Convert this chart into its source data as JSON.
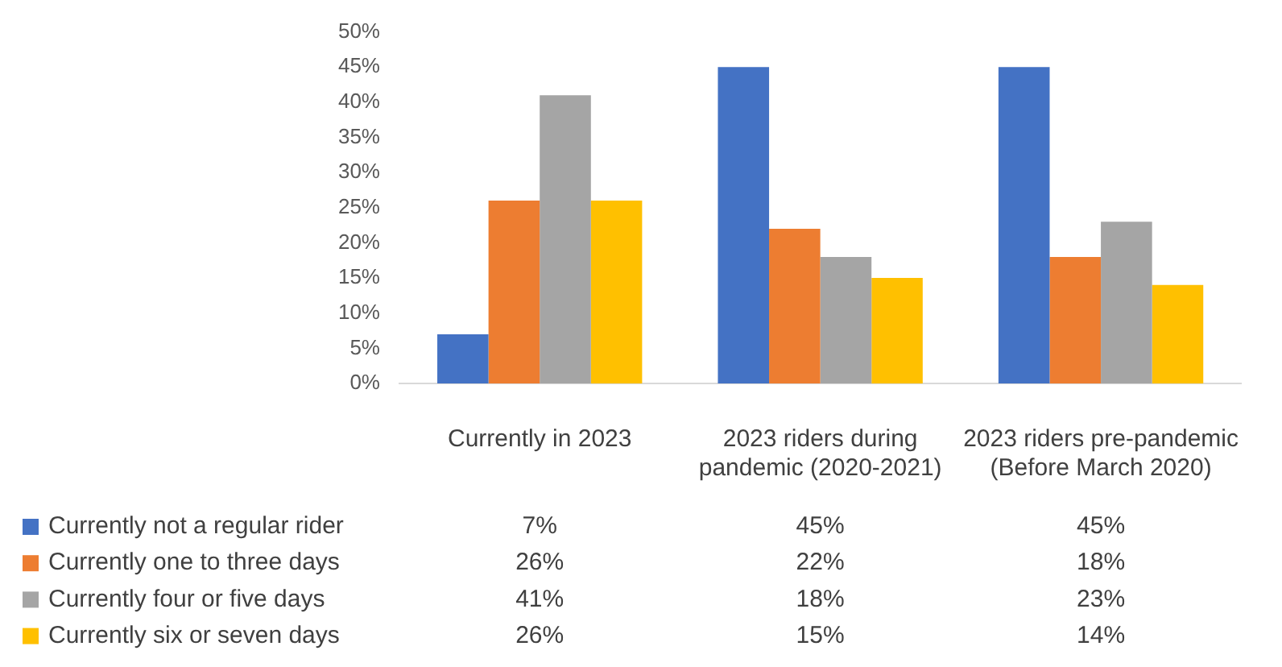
{
  "chart_data": {
    "type": "bar",
    "categories": [
      "Currently in 2023",
      "2023 riders during pandemic (2020-2021)",
      "2023 riders pre-pandemic (Before March 2020)"
    ],
    "series": [
      {
        "name": "Currently not a regular rider",
        "color": "#4472c4",
        "values": [
          7,
          45,
          45
        ],
        "value_labels": [
          "7%",
          "45%",
          "45%"
        ]
      },
      {
        "name": "Currently one to three days",
        "color": "#ed7d31",
        "values": [
          26,
          22,
          18
        ],
        "value_labels": [
          "26%",
          "22%",
          "18%"
        ]
      },
      {
        "name": "Currently four or five days",
        "color": "#a5a5a5",
        "values": [
          41,
          18,
          23
        ],
        "value_labels": [
          "41%",
          "18%",
          "23%"
        ]
      },
      {
        "name": "Currently six or seven days",
        "color": "#ffc000",
        "values": [
          26,
          15,
          14
        ],
        "value_labels": [
          "26%",
          "15%",
          "14%"
        ]
      }
    ],
    "ylim": [
      0,
      50
    ],
    "yticks": [
      {
        "value": 0,
        "label": "0%"
      },
      {
        "value": 5,
        "label": "5%"
      },
      {
        "value": 10,
        "label": "10%"
      },
      {
        "value": 15,
        "label": "15%"
      },
      {
        "value": 20,
        "label": "20%"
      },
      {
        "value": 25,
        "label": "25%"
      },
      {
        "value": 30,
        "label": "30%"
      },
      {
        "value": 35,
        "label": "35%"
      },
      {
        "value": 40,
        "label": "40%"
      },
      {
        "value": 45,
        "label": "45%"
      },
      {
        "value": 50,
        "label": "50%"
      }
    ],
    "grid": false,
    "legend": "bottom"
  }
}
